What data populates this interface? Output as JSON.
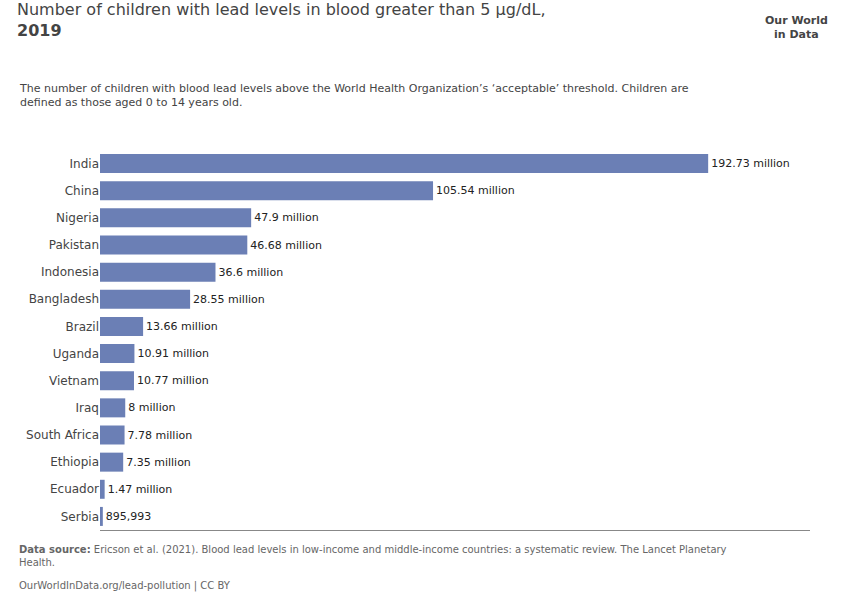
{
  "chart_data": {
    "type": "bar",
    "orientation": "horizontal",
    "title": "Number of children with lead levels in blood greater than 5 µg/dL,\n2019",
    "subtitle": "The number of children with blood lead levels above the World Health Organization’s ‘acceptable’ threshold. Children are\ndefined as those aged 0 to 14 years old.",
    "annotations": [
      "Data source:",
      " Ericson et al. (2021). Blood lead levels in low-income and middle-income countries: a systematic review. The Lancet Planetary\nHealth.",
      "OurWorldInData.org/lead-pollution | CC BY",
      "Our World",
      "in Data"
    ],
    "categories": [
      "India",
      "China",
      "Nigeria",
      "Pakistan",
      "Indonesia",
      "Bangladesh",
      "Brazil",
      "Uganda",
      "Vietnam",
      "Iraq",
      "South Africa",
      "Ethiopia",
      "Ecuador",
      "Serbia"
    ],
    "values": [
      192730000,
      105540000,
      47900000,
      46680000,
      36600000,
      28550000,
      13660000,
      10910000,
      10770000,
      8000000,
      7780000,
      7350000,
      1470000,
      895993
    ],
    "value_labels": [
      "192.73 million",
      "105.54 million",
      "47.9 million",
      "46.68 million",
      "36.6 million",
      "28.55 million",
      "13.66 million",
      "10.91 million",
      "10.77 million",
      "8 million",
      "7.78 million",
      "7.35 million",
      "1.47 million",
      "895,993"
    ],
    "data_labels": true,
    "color": "#6b7fb5",
    "xlim": [
      0,
      225000000
    ],
    "xticks": [],
    "tick_labels": "y",
    "grid": false
  }
}
